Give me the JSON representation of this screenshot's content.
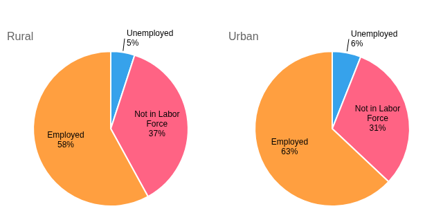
{
  "chart_data": [
    {
      "type": "pie",
      "title": "Rural",
      "categories": [
        "Unemployed",
        "Not in Labor\nForce",
        "Employed"
      ],
      "values": [
        5,
        37,
        58
      ],
      "value_labels": [
        "5%",
        "37%",
        "58%"
      ],
      "data_labels": true
    },
    {
      "type": "pie",
      "title": "Urban",
      "categories": [
        "Unemployed",
        "Not in Labor\nForce",
        "Employed"
      ],
      "values": [
        6,
        31,
        63
      ],
      "value_labels": [
        "6%",
        "31%",
        "63%"
      ],
      "data_labels": true
    }
  ]
}
